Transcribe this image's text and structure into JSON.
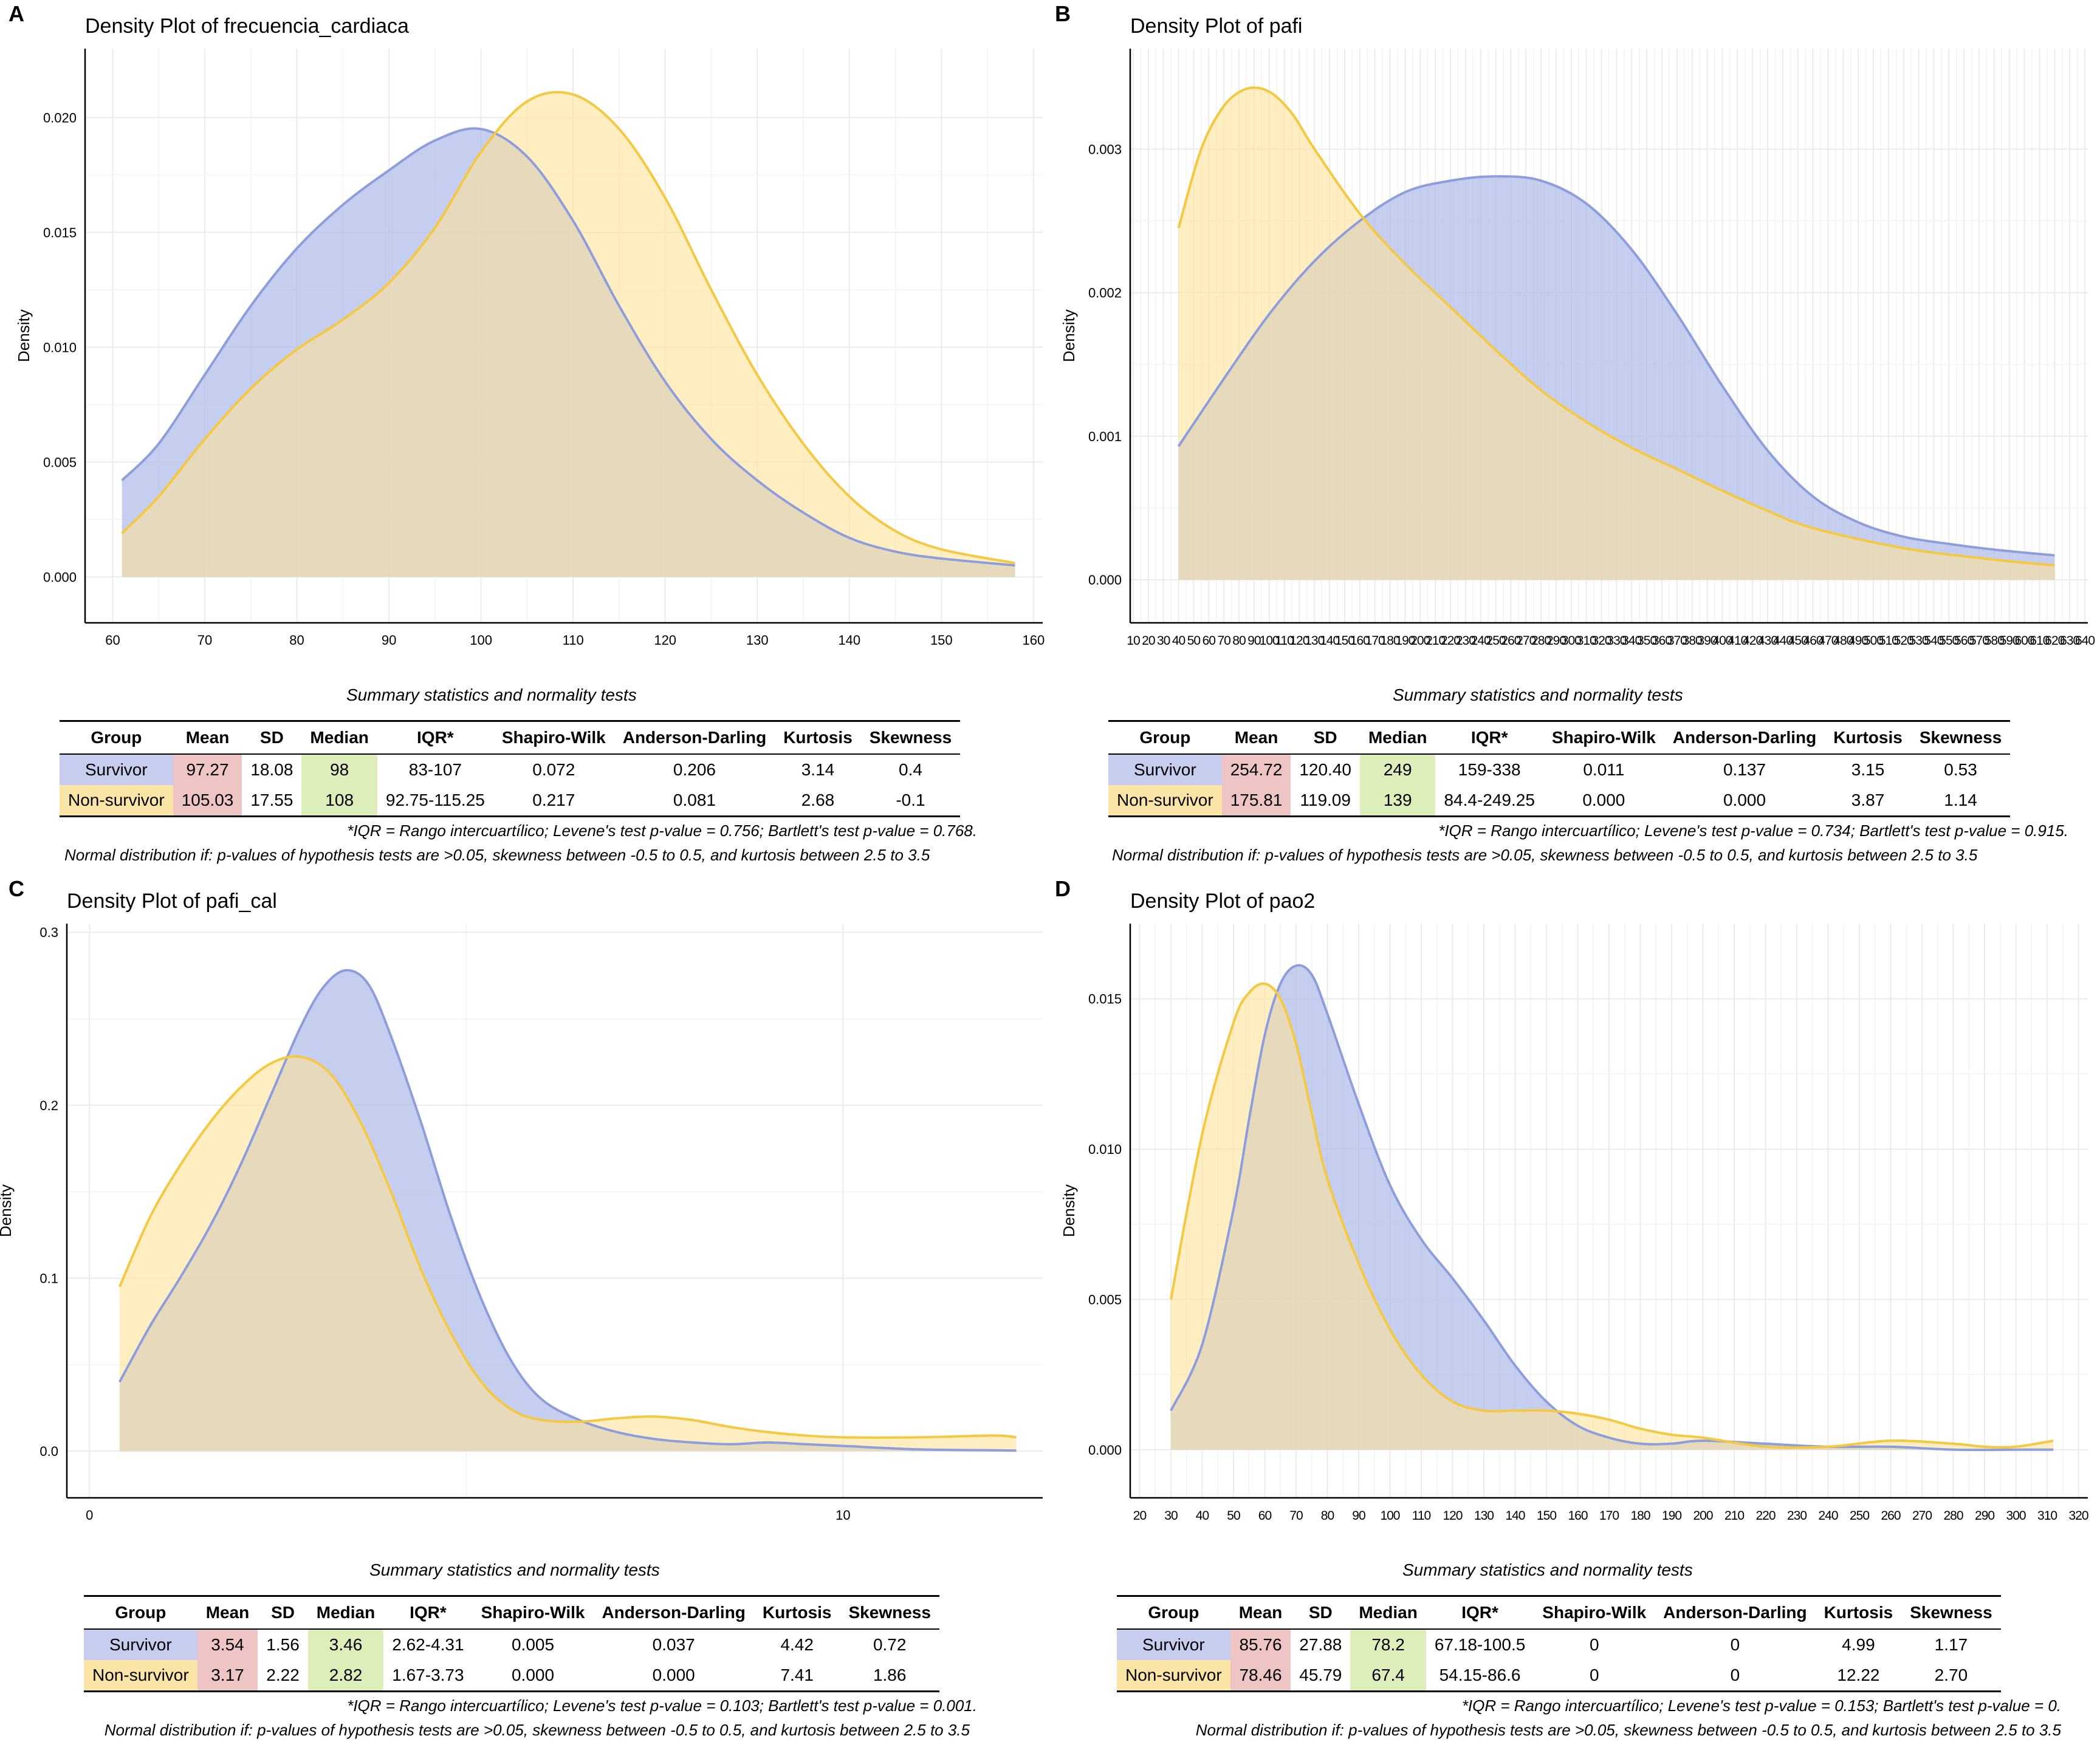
{
  "colors": {
    "survivor": "#8e9edc",
    "survivor_fill": "#b3bdeb",
    "non_survivor": "#f5c842",
    "non_survivor_fill": "#fde39a",
    "overlap": "#d8c8a0"
  },
  "panels": [
    {
      "letter": "A",
      "title": "Density Plot of frecuencia_cardiaca",
      "ylabel": "Density",
      "stats_title": "Summary statistics and normality tests",
      "headers": [
        "Group",
        "Mean",
        "SD",
        "Median",
        "IQR*",
        "Shapiro-Wilk",
        "Anderson-Darling",
        "Kurtosis",
        "Skewness"
      ],
      "rows": [
        {
          "group": "Survivor",
          "mean": "97.27",
          "sd": "18.08",
          "median": "98",
          "iqr": "83-107",
          "sw": "0.072",
          "ad": "0.206",
          "kurt": "3.14",
          "skew": "0.4"
        },
        {
          "group": "Non-survivor",
          "mean": "105.03",
          "sd": "17.55",
          "median": "108",
          "iqr": "92.75-115.25",
          "sw": "0.217",
          "ad": "0.081",
          "kurt": "2.68",
          "skew": "-0.1"
        }
      ],
      "note1": "*IQR = Rango intercuartílico; Levene's test p-value = 0.756; Bartlett's test p-value = 0.768.",
      "note2": "Normal distribution if: p-values of hypothesis tests are >0.05, skewness between -0.5 to 0.5, and kurtosis between 2.5 to 3.5"
    },
    {
      "letter": "B",
      "title": "Density Plot of pafi",
      "ylabel": "Density",
      "stats_title": "Summary statistics and normality tests",
      "headers": [
        "Group",
        "Mean",
        "SD",
        "Median",
        "IQR*",
        "Shapiro-Wilk",
        "Anderson-Darling",
        "Kurtosis",
        "Skewness"
      ],
      "rows": [
        {
          "group": "Survivor",
          "mean": "254.72",
          "sd": "120.40",
          "median": "249",
          "iqr": "159-338",
          "sw": "0.011",
          "ad": "0.137",
          "kurt": "3.15",
          "skew": "0.53"
        },
        {
          "group": "Non-survivor",
          "mean": "175.81",
          "sd": "119.09",
          "median": "139",
          "iqr": "84.4-249.25",
          "sw": "0.000",
          "ad": "0.000",
          "kurt": "3.87",
          "skew": "1.14"
        }
      ],
      "note1": "*IQR = Rango intercuartílico; Levene's test p-value = 0.734; Bartlett's test p-value = 0.915.",
      "note2": "Normal distribution if: p-values of hypothesis tests are >0.05, skewness between -0.5 to 0.5, and kurtosis between 2.5 to 3.5"
    },
    {
      "letter": "C",
      "title": "Density Plot of pafi_cal",
      "ylabel": "Density",
      "stats_title": "Summary statistics and normality tests",
      "headers": [
        "Group",
        "Mean",
        "SD",
        "Median",
        "IQR*",
        "Shapiro-Wilk",
        "Anderson-Darling",
        "Kurtosis",
        "Skewness"
      ],
      "rows": [
        {
          "group": "Survivor",
          "mean": "3.54",
          "sd": "1.56",
          "median": "3.46",
          "iqr": "2.62-4.31",
          "sw": "0.005",
          "ad": "0.037",
          "kurt": "4.42",
          "skew": "0.72"
        },
        {
          "group": "Non-survivor",
          "mean": "3.17",
          "sd": "2.22",
          "median": "2.82",
          "iqr": "1.67-3.73",
          "sw": "0.000",
          "ad": "0.000",
          "kurt": "7.41",
          "skew": "1.86"
        }
      ],
      "note1": "*IQR = Rango intercuartílico; Levene's test p-value = 0.103; Bartlett's test p-value = 0.001.",
      "note2": "Normal distribution if: p-values of hypothesis tests are >0.05, skewness between -0.5 to 0.5, and kurtosis between 2.5 to 3.5"
    },
    {
      "letter": "D",
      "title": "Density Plot of pao2",
      "ylabel": "Density",
      "stats_title": "Summary statistics and normality tests",
      "headers": [
        "Group",
        "Mean",
        "SD",
        "Median",
        "IQR*",
        "Shapiro-Wilk",
        "Anderson-Darling",
        "Kurtosis",
        "Skewness"
      ],
      "rows": [
        {
          "group": "Survivor",
          "mean": "85.76",
          "sd": "27.88",
          "median": "78.2",
          "iqr": "67.18-100.5",
          "sw": "0",
          "ad": "0",
          "kurt": "4.99",
          "skew": "1.17"
        },
        {
          "group": "Non-survivor",
          "mean": "78.46",
          "sd": "45.79",
          "median": "67.4",
          "iqr": "54.15-86.6",
          "sw": "0",
          "ad": "0",
          "kurt": "12.22",
          "skew": "2.70"
        }
      ],
      "note1": "*IQR = Rango intercuartílico; Levene's test p-value = 0.153; Bartlett's test p-value = 0.",
      "note2": "Normal distribution if: p-values of hypothesis tests are >0.05, skewness between -0.5 to 0.5, and kurtosis between 2.5 to 3.5"
    }
  ],
  "chart_data": [
    {
      "type": "area",
      "title": "Density Plot of frecuencia_cardiaca",
      "ylabel": "Density",
      "xlim": [
        57,
        161
      ],
      "ylim": [
        -0.002,
        0.023
      ],
      "xticks": [
        60,
        70,
        80,
        90,
        100,
        110,
        120,
        130,
        140,
        150,
        160
      ],
      "yticks": [
        0.0,
        0.005,
        0.01,
        0.015,
        0.02
      ],
      "ytick_labels": [
        "0.000",
        "0.005",
        "0.010",
        "0.015",
        "0.020"
      ],
      "series": [
        {
          "name": "Survivor",
          "x": [
            61,
            65,
            70,
            75,
            80,
            85,
            90,
            95,
            100,
            105,
            110,
            115,
            120,
            125,
            130,
            135,
            140,
            145,
            150,
            158
          ],
          "y": [
            0.0042,
            0.0058,
            0.0088,
            0.0118,
            0.0143,
            0.0162,
            0.0177,
            0.019,
            0.0195,
            0.0183,
            0.0155,
            0.0118,
            0.0085,
            0.006,
            0.0042,
            0.0028,
            0.0017,
            0.0011,
            0.0008,
            0.0005
          ]
        },
        {
          "name": "Non-survivor",
          "x": [
            61,
            65,
            70,
            75,
            80,
            85,
            90,
            95,
            100,
            105,
            110,
            115,
            120,
            125,
            130,
            135,
            140,
            145,
            150,
            158
          ],
          "y": [
            0.0019,
            0.0035,
            0.006,
            0.0082,
            0.0099,
            0.0112,
            0.0128,
            0.0152,
            0.0185,
            0.0207,
            0.021,
            0.0195,
            0.0165,
            0.0125,
            0.0088,
            0.0058,
            0.0035,
            0.002,
            0.0012,
            0.0006
          ]
        }
      ]
    },
    {
      "type": "area",
      "title": "Density Plot of pafi",
      "ylabel": "Density",
      "xlim": [
        8,
        642
      ],
      "ylim": [
        -0.0003,
        0.0037
      ],
      "xtick_start": 10,
      "xtick_end": 640,
      "xtick_step": 10,
      "yticks": [
        0.0,
        0.001,
        0.002,
        0.003
      ],
      "ytick_labels": [
        "0.000",
        "0.001",
        "0.002",
        "0.003"
      ],
      "series": [
        {
          "name": "Survivor",
          "x": [
            40,
            70,
            100,
            130,
            160,
            190,
            220,
            250,
            280,
            310,
            340,
            370,
            400,
            430,
            460,
            490,
            520,
            550,
            580,
            620
          ],
          "y": [
            0.00093,
            0.0014,
            0.00185,
            0.00222,
            0.0025,
            0.0027,
            0.00278,
            0.00281,
            0.00278,
            0.00262,
            0.0023,
            0.00185,
            0.00135,
            0.0009,
            0.00058,
            0.0004,
            0.0003,
            0.00025,
            0.00021,
            0.00017
          ]
        },
        {
          "name": "Non-survivor",
          "x": [
            40,
            55,
            70,
            85,
            100,
            115,
            130,
            160,
            190,
            220,
            250,
            280,
            310,
            340,
            370,
            400,
            430,
            460,
            520,
            580,
            620
          ],
          "y": [
            0.00245,
            0.003,
            0.0033,
            0.00342,
            0.0034,
            0.00325,
            0.003,
            0.00255,
            0.0022,
            0.0019,
            0.0016,
            0.00132,
            0.0011,
            0.00092,
            0.00077,
            0.00062,
            0.00048,
            0.00036,
            0.00022,
            0.00014,
            0.0001
          ]
        }
      ]
    },
    {
      "type": "area",
      "title": "Density Plot of pafi_cal",
      "ylabel": "Density",
      "xlim": [
        -0.3,
        12.65
      ],
      "ylim": [
        -0.027,
        0.305
      ],
      "xticks": [
        0,
        10
      ],
      "yticks": [
        0.0,
        0.1,
        0.2,
        0.3
      ],
      "ytick_labels": [
        "0.0",
        "0.1",
        "0.2",
        "0.3"
      ],
      "series": [
        {
          "name": "Survivor",
          "x": [
            0.4,
            0.8,
            1.2,
            1.6,
            2.0,
            2.4,
            2.8,
            3.1,
            3.4,
            3.7,
            4.0,
            4.4,
            4.8,
            5.2,
            5.6,
            6.0,
            6.5,
            7.0,
            7.5,
            8.0,
            8.5,
            9.0,
            9.5,
            10.0,
            11.0,
            12.0,
            12.3
          ],
          "y": [
            0.04,
            0.072,
            0.1,
            0.13,
            0.165,
            0.205,
            0.245,
            0.268,
            0.278,
            0.27,
            0.24,
            0.19,
            0.135,
            0.088,
            0.052,
            0.03,
            0.018,
            0.011,
            0.007,
            0.005,
            0.004,
            0.005,
            0.004,
            0.003,
            0.001,
            0.0005,
            0.0003
          ]
        },
        {
          "name": "Non-survivor",
          "x": [
            0.4,
            0.8,
            1.2,
            1.6,
            2.0,
            2.4,
            2.8,
            3.2,
            3.6,
            4.0,
            4.4,
            4.8,
            5.2,
            5.6,
            6.0,
            6.5,
            7.0,
            7.5,
            8.0,
            8.5,
            9.0,
            9.5,
            10.0,
            11.0,
            12.0,
            12.3
          ],
          "y": [
            0.095,
            0.135,
            0.165,
            0.19,
            0.21,
            0.224,
            0.228,
            0.218,
            0.19,
            0.15,
            0.105,
            0.068,
            0.04,
            0.024,
            0.018,
            0.017,
            0.019,
            0.02,
            0.018,
            0.014,
            0.011,
            0.009,
            0.008,
            0.008,
            0.009,
            0.008
          ]
        }
      ]
    },
    {
      "type": "area",
      "title": "Density Plot of pao2",
      "ylabel": "Density",
      "xlim": [
        17,
        323
      ],
      "ylim": [
        -0.0016,
        0.0175
      ],
      "xtick_start": 20,
      "xtick_end": 320,
      "xtick_step": 10,
      "yticks": [
        0.0,
        0.005,
        0.01,
        0.015
      ],
      "ytick_labels": [
        "0.000",
        "0.005",
        "0.010",
        "0.015"
      ],
      "series": [
        {
          "name": "Survivor",
          "x": [
            30,
            40,
            50,
            55,
            60,
            65,
            70,
            75,
            80,
            90,
            100,
            110,
            120,
            130,
            140,
            150,
            160,
            170,
            180,
            190,
            200,
            220,
            240,
            260,
            280,
            300,
            312
          ],
          "y": [
            0.0013,
            0.0035,
            0.008,
            0.011,
            0.0138,
            0.0155,
            0.0161,
            0.0158,
            0.0145,
            0.0115,
            0.0088,
            0.007,
            0.0057,
            0.0043,
            0.0028,
            0.0016,
            0.0008,
            0.0004,
            0.0002,
            0.0002,
            0.0003,
            0.0002,
            0.0001,
            0.0001,
            0.0,
            0.0,
            0.0
          ]
        },
        {
          "name": "Non-survivor",
          "x": [
            30,
            40,
            50,
            55,
            60,
            65,
            70,
            75,
            80,
            90,
            100,
            110,
            120,
            130,
            140,
            150,
            160,
            170,
            180,
            190,
            200,
            220,
            240,
            260,
            280,
            290,
            300,
            312
          ],
          "y": [
            0.005,
            0.0105,
            0.0142,
            0.0152,
            0.0155,
            0.015,
            0.0135,
            0.0112,
            0.009,
            0.0062,
            0.004,
            0.0025,
            0.0016,
            0.0013,
            0.0013,
            0.0013,
            0.0012,
            0.001,
            0.0007,
            0.0005,
            0.0004,
            0.0001,
            0.0001,
            0.0003,
            0.0002,
            0.0001,
            0.0001,
            0.0003
          ]
        }
      ]
    }
  ]
}
